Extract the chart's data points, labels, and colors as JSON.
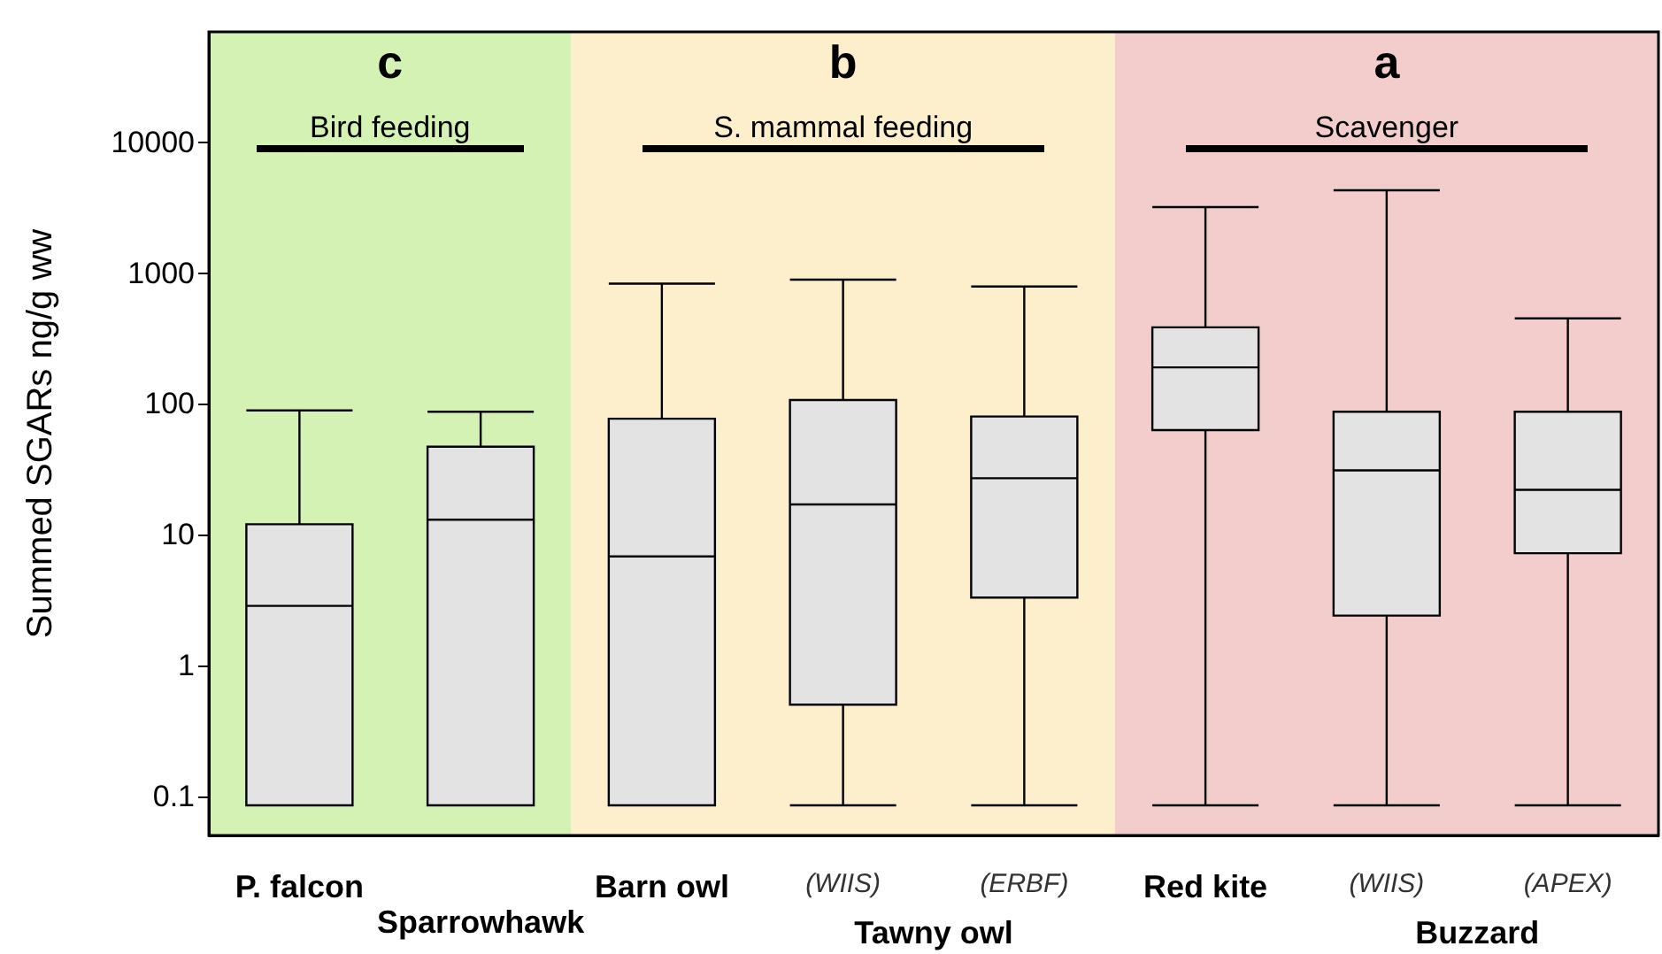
{
  "chart_data": {
    "type": "box",
    "ylabel": "Summed SGARs ng/g ww",
    "log": "y",
    "ylim": [
      0.05,
      70000
    ],
    "yticks": [
      0.1,
      1,
      10,
      100,
      1000,
      10000
    ],
    "grid": false,
    "categories": [
      "P. falcon",
      "Sparrowhawk",
      "Barn owl",
      "(WIIS)",
      "(ERBF)",
      "Red kite",
      "(WIIS)",
      "(APEX)"
    ],
    "color": "#e3e3e3",
    "boxes": [
      {
        "low": 0.085,
        "q1": 0.085,
        "median": 2.85,
        "q3": 12,
        "high": 89
      },
      {
        "low": 0.085,
        "q1": 0.085,
        "median": 13,
        "q3": 47,
        "high": 87
      },
      {
        "low": 0.085,
        "q1": 0.085,
        "median": 6.8,
        "q3": 77,
        "high": 830
      },
      {
        "low": 0.085,
        "q1": 0.5,
        "median": 17,
        "q3": 107,
        "high": 890
      },
      {
        "low": 0.085,
        "q1": 3.3,
        "median": 27,
        "q3": 80,
        "high": 790
      },
      {
        "low": 0.085,
        "q1": 63,
        "median": 190,
        "q3": 385,
        "high": 3200
      },
      {
        "low": 0.085,
        "q1": 2.4,
        "median": 31,
        "q3": 87,
        "high": 4300
      },
      {
        "low": 0.085,
        "q1": 7.2,
        "median": 22,
        "q3": 87,
        "high": 450
      }
    ],
    "bands": [
      {
        "axis": "x",
        "from": "P. falcon",
        "to": "Sparrowhawk",
        "label": "c",
        "color": "#d4f2b4"
      },
      {
        "axis": "x",
        "from": "Barn owl",
        "to": "(ERBF)",
        "label": "b",
        "color": "#fdefcb"
      },
      {
        "axis": "x",
        "from": "Red kite",
        "to": "(APEX)",
        "label": "a",
        "color": "#f3cccc"
      }
    ],
    "annotations": [
      "Bird feeding",
      "S. mammal feeding",
      "Scavenger",
      "Tawny owl",
      "Buzzard"
    ]
  }
}
